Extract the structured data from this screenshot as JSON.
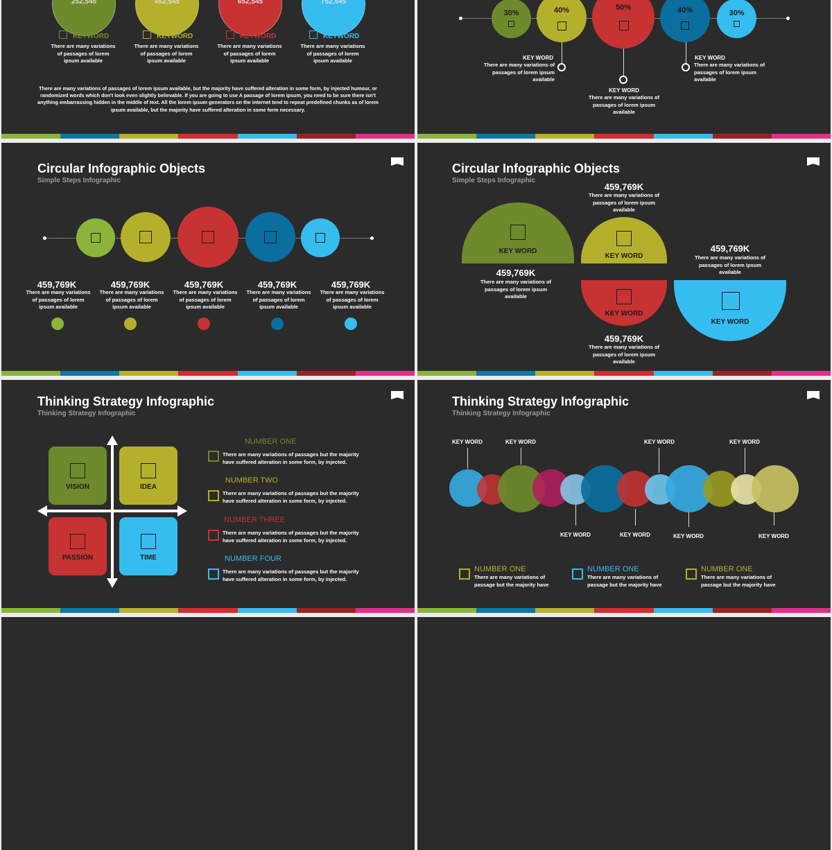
{
  "stripe_colors": [
    "#8ab53a",
    "#0c77a8",
    "#b7b22d",
    "#d12e30",
    "#36bdf0",
    "#9a2326",
    "#e03088"
  ],
  "slide1": {
    "values": [
      "252,545",
      "452,545",
      "652,545",
      "752,545"
    ],
    "colors": [
      "#6e8a2c",
      "#b5b02c",
      "#c73233",
      "#36bdf0"
    ],
    "keywords": [
      "KEYWORD",
      "KEYWORD",
      "KEYWORD",
      "KEYWORD"
    ],
    "desc": "There are many variations of passages of lorem ipsum available",
    "paragraph": "There are many variations of passages of lorem ipsum available, but the majority have suffered alteration in some form, by injected humour, or randomized words which don't look even slightly believable. If you are going to use A passage of lorem ipsum, you need to be sure there isn't anything embarrassing hidden in the middle of text. All the lorem ipsum generators on the internet tend to repeat predefined chunks as of lorem ipsum available, but the majority have suffered alteration in some form necessary."
  },
  "slide2": {
    "percents": [
      "30%",
      "40%",
      "50%",
      "40%",
      "30%"
    ],
    "colors": [
      "#6e8a2c",
      "#b5b02c",
      "#c73233",
      "#0a6f9e",
      "#36bdf0"
    ],
    "callouts": [
      {
        "title": "KEY WORD",
        "text": "There are many variations of passages of lorem ipsum available"
      },
      {
        "title": "KEY WORD",
        "text": "There are many variations of passages of lorem ipsum available"
      },
      {
        "title": "KEY WORD",
        "text": "There are many variations of passages of lorem ipsum available"
      }
    ]
  },
  "slide3": {
    "title": "Circular Infographic Objects",
    "subtitle": "Simple Steps Infographic",
    "colors": [
      "#8ab53a",
      "#b5b02c",
      "#c73233",
      "#0a6f9e",
      "#36bdf0"
    ],
    "values": [
      "459,769K",
      "459,769K",
      "459,769K",
      "459,769K",
      "459,769K"
    ],
    "desc": "There are many variations of passages of lorem ipsum available"
  },
  "slide4": {
    "title": "Circular Infographic Objects",
    "subtitle": "Simple Steps Infographic",
    "shapes": [
      {
        "label": "KEY WORD",
        "color": "#6e8a2c"
      },
      {
        "label": "KEY WORD",
        "color": "#b5b02c"
      },
      {
        "label": "KEY WORD",
        "color": "#c73233"
      },
      {
        "label": "KEY WORD",
        "color": "#36bdf0"
      }
    ],
    "values": [
      "459,769K",
      "459,769K",
      "459,769K",
      "459,769K"
    ],
    "desc": "There are many variations of passages of lorem ipsum available"
  },
  "slide5": {
    "title": "Thinking Strategy Infographic",
    "subtitle": "Thinking Strategy Infographic",
    "quadrants": [
      {
        "label": "VISION",
        "color": "#6e8a2c"
      },
      {
        "label": "IDEA",
        "color": "#b5b02c"
      },
      {
        "label": "PASSION",
        "color": "#c73233"
      },
      {
        "label": "TIME",
        "color": "#36bdf0"
      }
    ],
    "items": [
      {
        "title": "NUMBER ONE",
        "color": "#6e8a2c",
        "text": "There are many variations of passages but the majority have suffered alteration in some form, by injected."
      },
      {
        "title": "NUMBER TWO",
        "color": "#b5b02c",
        "text": "There are many variations of passages but the majority have suffered alteration in some form, by injected."
      },
      {
        "title": "NUMBER THREE",
        "color": "#c73233",
        "text": "There are many variations of passages but the majority have suffered alteration in some form, by injected."
      },
      {
        "title": "NUMBER FOUR",
        "color": "#36bdf0",
        "text": "There are many variations of passages but the majority have suffered alteration in some form, by injected."
      }
    ]
  },
  "slide6": {
    "title": "Thinking Strategy Infographic",
    "subtitle": "Thinking Strategy Infographic",
    "keywords_top": [
      "KEY WORD",
      "KEY WORD",
      "KEY WORD",
      "KEY WORD"
    ],
    "keywords_bottom": [
      "KEY WORD",
      "KEY WORD",
      "KEY WORD",
      "KEY WORD"
    ],
    "legend": [
      {
        "title": "NUMBER ONE",
        "color": "#b5b02c",
        "text": "There are many variations of passage but the majority have"
      },
      {
        "title": "NUMBER ONE",
        "color": "#36bdf0",
        "text": "There are many variations of passage but the majority have"
      },
      {
        "title": "NUMBER ONE",
        "color": "#b5b02c",
        "text": "There are many variations of passage but the majority have"
      }
    ]
  }
}
